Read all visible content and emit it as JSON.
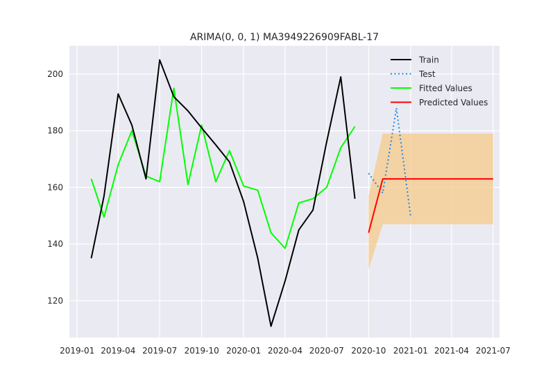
{
  "chart_data": {
    "type": "line",
    "title": "ARIMA(0, 0, 1) MA3949226909FABL-17",
    "xlabel": "",
    "ylabel": "",
    "x_axis_type": "date",
    "xlim": [
      "2018-12-15",
      "2021-07-15"
    ],
    "ylim": [
      107,
      210
    ],
    "grid": true,
    "legend_position": "top-right",
    "x_ticks": [
      "2019-01",
      "2019-04",
      "2019-07",
      "2019-10",
      "2020-01",
      "2020-04",
      "2020-07",
      "2020-10",
      "2021-01",
      "2021-04",
      "2021-07"
    ],
    "y_ticks": [
      120,
      140,
      160,
      180,
      200
    ],
    "series": [
      {
        "name": "Train",
        "color": "#000000",
        "style": "solid",
        "points": [
          {
            "x": "2019-02-01",
            "y": 135
          },
          {
            "x": "2019-03-01",
            "y": 157
          },
          {
            "x": "2019-04-01",
            "y": 193
          },
          {
            "x": "2019-05-01",
            "y": 182
          },
          {
            "x": "2019-06-01",
            "y": 163
          },
          {
            "x": "2019-07-01",
            "y": 205
          },
          {
            "x": "2019-08-01",
            "y": 192
          },
          {
            "x": "2019-09-01",
            "y": 187
          },
          {
            "x": "2019-10-01",
            "y": 181
          },
          {
            "x": "2019-11-01",
            "y": 175
          },
          {
            "x": "2019-12-01",
            "y": 169
          },
          {
            "x": "2020-01-01",
            "y": 155
          },
          {
            "x": "2020-02-01",
            "y": 135
          },
          {
            "x": "2020-03-01",
            "y": 111
          },
          {
            "x": "2020-04-01",
            "y": 127
          },
          {
            "x": "2020-05-01",
            "y": 145
          },
          {
            "x": "2020-06-01",
            "y": 152
          },
          {
            "x": "2020-07-01",
            "y": 176
          },
          {
            "x": "2020-08-01",
            "y": 199
          },
          {
            "x": "2020-09-01",
            "y": 156
          }
        ]
      },
      {
        "name": "Test",
        "color": "#1e88e5",
        "style": "dotted",
        "points": [
          {
            "x": "2020-10-01",
            "y": 165
          },
          {
            "x": "2020-11-01",
            "y": 158
          },
          {
            "x": "2020-12-01",
            "y": 188
          },
          {
            "x": "2021-01-01",
            "y": 150
          }
        ]
      },
      {
        "name": "Fitted Values",
        "color": "#00ff00",
        "style": "solid",
        "points": [
          {
            "x": "2019-02-01",
            "y": 163
          },
          {
            "x": "2019-03-01",
            "y": 149.5
          },
          {
            "x": "2019-04-01",
            "y": 168
          },
          {
            "x": "2019-05-01",
            "y": 180
          },
          {
            "x": "2019-06-01",
            "y": 164
          },
          {
            "x": "2019-07-01",
            "y": 162
          },
          {
            "x": "2019-08-01",
            "y": 195
          },
          {
            "x": "2019-09-01",
            "y": 161
          },
          {
            "x": "2019-10-01",
            "y": 182
          },
          {
            "x": "2019-11-01",
            "y": 162
          },
          {
            "x": "2019-12-01",
            "y": 173
          },
          {
            "x": "2020-01-01",
            "y": 160.5
          },
          {
            "x": "2020-02-01",
            "y": 159
          },
          {
            "x": "2020-03-01",
            "y": 144
          },
          {
            "x": "2020-04-01",
            "y": 138.5
          },
          {
            "x": "2020-05-01",
            "y": 154.5
          },
          {
            "x": "2020-06-01",
            "y": 156
          },
          {
            "x": "2020-07-01",
            "y": 160
          },
          {
            "x": "2020-08-01",
            "y": 174
          },
          {
            "x": "2020-09-01",
            "y": 181.5
          }
        ]
      },
      {
        "name": "Predicted Values",
        "color": "#ff0000",
        "style": "solid",
        "points": [
          {
            "x": "2020-10-01",
            "y": 144
          },
          {
            "x": "2020-11-01",
            "y": 163
          },
          {
            "x": "2021-07-01",
            "y": 163
          }
        ]
      }
    ],
    "confidence_band": {
      "color": "#f5c98a",
      "points": [
        {
          "x": "2020-10-01",
          "lower": 131,
          "upper": 157
        },
        {
          "x": "2020-11-01",
          "lower": 147,
          "upper": 179
        },
        {
          "x": "2021-07-01",
          "lower": 147,
          "upper": 179
        }
      ]
    }
  }
}
